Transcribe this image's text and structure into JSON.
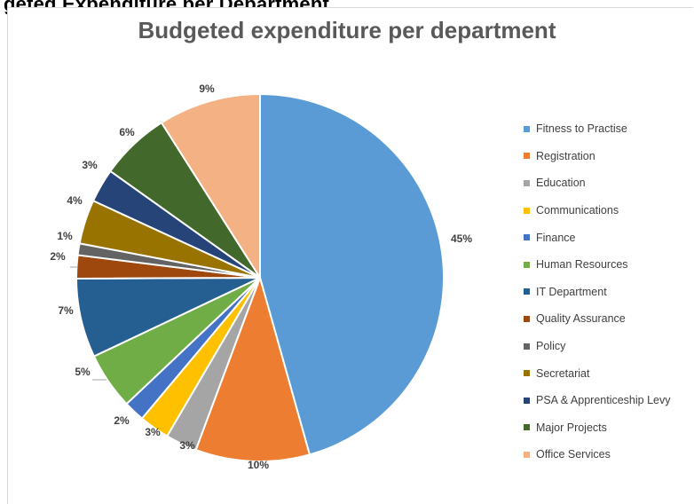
{
  "page": {
    "cut_heading": "geted Expenditure per Department"
  },
  "chart_data": {
    "type": "pie",
    "title": "Budgeted expenditure per department",
    "legend_position": "right",
    "categories": [
      "Fitness to Practise",
      "Registration",
      "Education",
      "Communications",
      "Finance",
      "Human Resources",
      "IT Department",
      "Quality Assurance",
      "Policy",
      "Secretariat",
      "PSA & Apprenticeship Levy",
      "Major Projects",
      "Office Services"
    ],
    "values": [
      44.6,
      9.8,
      2.7,
      2.6,
      1.8,
      4.9,
      6.8,
      2.0,
      1.0,
      3.8,
      2.9,
      6.0,
      8.8
    ],
    "labels": [
      "45%",
      "10%",
      "3%",
      "3%",
      "2%",
      "5%",
      "7%",
      "2%",
      "1%",
      "4%",
      "3%",
      "6%",
      "9%"
    ],
    "colors": [
      "#5b9bd5",
      "#ed7d31",
      "#a5a5a5",
      "#ffc000",
      "#4472c4",
      "#70ad47",
      "#255e91",
      "#9e480e",
      "#636363",
      "#997300",
      "#264478",
      "#43682b",
      "#f4b183"
    ]
  }
}
